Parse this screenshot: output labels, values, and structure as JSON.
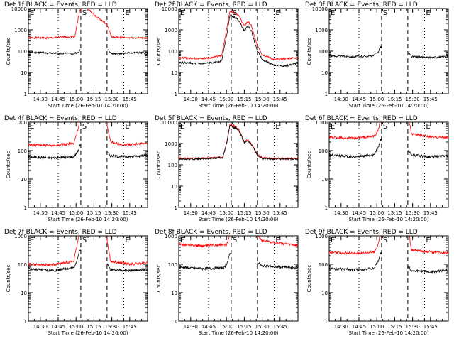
{
  "page": {
    "colors": {
      "background": "#ffffff",
      "axis": "#000000",
      "events": "#000000",
      "lld": "#ff0000"
    }
  },
  "chart_data": [
    {
      "type": "line",
      "title": "Det 1f BLACK = Events, RED = LLD",
      "xlabel": "Start Time (26-Feb-10 14:20:00)",
      "ylabel": "Counts/sec",
      "xlim": [
        "14:20",
        "16:00"
      ],
      "ylim": [
        1,
        10000
      ],
      "yscale": "log",
      "xticks": [
        "14:30",
        "14:45",
        "15:00",
        "15:15",
        "15:30",
        "15:45"
      ],
      "yticks": [
        "1",
        "10",
        "100",
        "1000",
        "10000"
      ],
      "markers": [
        {
          "label": "E",
          "time": "14:20",
          "style": "dotted"
        },
        {
          "label": "",
          "time": "14:45",
          "style": "dotted"
        },
        {
          "label": "S",
          "time": "15:04",
          "style": "dashed"
        },
        {
          "label": "",
          "time": "15:26",
          "style": "dashed"
        },
        {
          "label": "E",
          "time": "15:40",
          "style": "dotted"
        }
      ],
      "series": [
        {
          "name": "LLD",
          "color": "#ff0000",
          "x": [
            "14:20",
            "14:40",
            "14:59",
            "15:03",
            "15:08",
            "15:15",
            "15:26",
            "15:30",
            "15:50",
            "16:00"
          ],
          "y": [
            420,
            420,
            500,
            8000,
            13000,
            5000,
            1800,
            450,
            420,
            420
          ]
        },
        {
          "name": "Events",
          "color": "#000000",
          "gap": [
            "15:04",
            "15:26"
          ],
          "x": [
            "14:20",
            "14:40",
            "14:58",
            "15:02",
            "15:03",
            "15:27",
            "15:30",
            "15:50",
            "16:00"
          ],
          "y": [
            90,
            80,
            75,
            90,
            110,
            110,
            75,
            85,
            80
          ]
        }
      ]
    },
    {
      "type": "line",
      "title": "Det 2f BLACK = Events, RED = LLD",
      "xlabel": "Start Time (26-Feb-10 14:20:00)",
      "ylabel": "Counts/sec",
      "xlim": [
        "14:20",
        "16:00"
      ],
      "ylim": [
        1,
        10000
      ],
      "yscale": "log",
      "xticks": [
        "14:30",
        "14:45",
        "15:00",
        "15:15",
        "15:30",
        "15:45"
      ],
      "yticks": [
        "1",
        "10",
        "100",
        "1000",
        "10000"
      ],
      "markers": [
        {
          "label": "E",
          "time": "14:20",
          "style": "dotted"
        },
        {
          "label": "",
          "time": "14:45",
          "style": "dotted"
        },
        {
          "label": "S",
          "time": "15:04",
          "style": "dashed"
        },
        {
          "label": "",
          "time": "15:26",
          "style": "dashed"
        },
        {
          "label": "E",
          "time": "15:40",
          "style": "dotted"
        }
      ],
      "series": [
        {
          "name": "LLD",
          "color": "#ff0000",
          "x": [
            "14:20",
            "14:40",
            "14:56",
            "15:00",
            "15:03",
            "15:10",
            "15:15",
            "15:18",
            "15:21",
            "15:25",
            "15:30",
            "15:40",
            "15:50",
            "16:00"
          ],
          "y": [
            50,
            45,
            60,
            1000,
            8000,
            5000,
            1500,
            2500,
            1500,
            250,
            70,
            40,
            45,
            50
          ]
        },
        {
          "name": "Events",
          "color": "#000000",
          "x": [
            "14:20",
            "14:40",
            "14:56",
            "15:00",
            "15:03",
            "15:10",
            "15:15",
            "15:18",
            "15:21",
            "15:25",
            "15:30",
            "15:40",
            "15:50",
            "16:00"
          ],
          "y": [
            30,
            25,
            35,
            500,
            5000,
            3000,
            900,
            1500,
            900,
            150,
            40,
            22,
            20,
            28
          ]
        }
      ]
    },
    {
      "type": "line",
      "title": "Det 3f BLACK = Events, RED = LLD",
      "xlabel": "Start Time (26-Feb-10 14:20:00)",
      "ylabel": "Counts/sec",
      "xlim": [
        "14:20",
        "16:00"
      ],
      "ylim": [
        1,
        10000
      ],
      "yscale": "log",
      "xticks": [
        "14:30",
        "14:45",
        "15:00",
        "15:15",
        "15:30",
        "15:45"
      ],
      "yticks": [
        "1",
        "10",
        "100",
        "1000",
        "10000"
      ],
      "markers": [
        {
          "label": "E",
          "time": "14:20",
          "style": "dotted"
        },
        {
          "label": "",
          "time": "14:45",
          "style": "dotted"
        },
        {
          "label": "S",
          "time": "15:04",
          "style": "dashed"
        },
        {
          "label": "",
          "time": "15:26",
          "style": "dashed"
        },
        {
          "label": "E",
          "time": "15:40",
          "style": "dotted"
        }
      ],
      "series": [
        {
          "name": "Events",
          "color": "#000000",
          "gap": [
            "15:04",
            "15:26"
          ],
          "x": [
            "14:20",
            "14:40",
            "14:57",
            "15:01",
            "15:03",
            "15:27",
            "15:29",
            "15:45",
            "16:00"
          ],
          "y": [
            60,
            55,
            60,
            90,
            160,
            80,
            55,
            50,
            55
          ]
        }
      ]
    },
    {
      "type": "line",
      "title": "Det 4f BLACK = Events, RED = LLD",
      "xlabel": "Start Time (26-Feb-10 14:20:00)",
      "ylabel": "Counts/sec",
      "xlim": [
        "14:20",
        "16:00"
      ],
      "ylim": [
        1,
        1000
      ],
      "yscale": "log",
      "xticks": [
        "14:30",
        "14:45",
        "15:00",
        "15:15",
        "15:30",
        "15:45"
      ],
      "yticks": [
        "1",
        "10",
        "100",
        "1000"
      ],
      "markers": [
        {
          "label": "E",
          "time": "14:20",
          "style": "dotted"
        },
        {
          "label": "",
          "time": "14:45",
          "style": "dotted"
        },
        {
          "label": "S",
          "time": "15:04",
          "style": "dashed"
        },
        {
          "label": "",
          "time": "15:26",
          "style": "dashed"
        },
        {
          "label": "E",
          "time": "15:40",
          "style": "dotted"
        }
      ],
      "series": [
        {
          "name": "LLD",
          "color": "#ff0000",
          "x": [
            "14:20",
            "14:40",
            "14:58",
            "15:02",
            "15:03",
            "15:25",
            "15:27",
            "15:29",
            "15:40",
            "16:00"
          ],
          "y": [
            160,
            150,
            180,
            600,
            1500,
            1500,
            500,
            200,
            160,
            180
          ]
        },
        {
          "name": "Events",
          "color": "#000000",
          "gap": [
            "15:04",
            "15:26"
          ],
          "x": [
            "14:20",
            "14:40",
            "14:58",
            "15:02",
            "15:03",
            "15:27",
            "15:29",
            "15:45",
            "16:00"
          ],
          "y": [
            60,
            55,
            60,
            100,
            160,
            80,
            65,
            60,
            70
          ]
        }
      ]
    },
    {
      "type": "line",
      "title": "Det 5f BLACK = Events, RED = LLD",
      "xlabel": "Start Time (26-Feb-10 14:20:00)",
      "ylabel": "Counts/sec",
      "xlim": [
        "14:20",
        "16:00"
      ],
      "ylim": [
        1,
        10000
      ],
      "yscale": "log",
      "xticks": [
        "14:30",
        "14:45",
        "15:00",
        "15:15",
        "15:30",
        "15:45"
      ],
      "yticks": [
        "1",
        "10",
        "100",
        "1000",
        "10000"
      ],
      "markers": [
        {
          "label": "E",
          "time": "14:20",
          "style": "dotted"
        },
        {
          "label": "",
          "time": "14:45",
          "style": "dotted"
        },
        {
          "label": "S",
          "time": "15:04",
          "style": "dashed"
        },
        {
          "label": "",
          "time": "15:26",
          "style": "dashed"
        },
        {
          "label": "E",
          "time": "15:40",
          "style": "dotted"
        }
      ],
      "series": [
        {
          "name": "LLD",
          "color": "#ff0000",
          "x": [
            "14:20",
            "14:40",
            "14:57",
            "15:00",
            "15:03",
            "15:10",
            "15:15",
            "15:18",
            "15:22",
            "15:26",
            "15:30",
            "15:40",
            "16:00"
          ],
          "y": [
            200,
            200,
            230,
            1000,
            8000,
            5000,
            1200,
            1500,
            800,
            300,
            210,
            200,
            200
          ]
        },
        {
          "name": "Events",
          "color": "#000000",
          "x": [
            "14:20",
            "14:40",
            "14:57",
            "15:00",
            "15:03",
            "15:10",
            "15:15",
            "15:18",
            "15:22",
            "15:26",
            "15:30",
            "15:40",
            "16:00"
          ],
          "y": [
            190,
            190,
            220,
            900,
            7000,
            4500,
            1100,
            1400,
            750,
            280,
            200,
            190,
            190
          ]
        }
      ]
    },
    {
      "type": "line",
      "title": "Det 6f BLACK = Events, RED = LLD",
      "xlabel": "Start Time (26-Feb-10 14:20:00)",
      "ylabel": "Counts/sec",
      "xlim": [
        "14:20",
        "16:00"
      ],
      "ylim": [
        1,
        1000
      ],
      "yscale": "log",
      "xticks": [
        "14:30",
        "14:45",
        "15:00",
        "15:15",
        "15:30",
        "15:45"
      ],
      "yticks": [
        "1",
        "10",
        "100",
        "1000"
      ],
      "markers": [
        {
          "label": "E",
          "time": "14:20",
          "style": "dotted"
        },
        {
          "label": "",
          "time": "14:45",
          "style": "dotted"
        },
        {
          "label": "S",
          "time": "15:04",
          "style": "dashed"
        },
        {
          "label": "",
          "time": "15:26",
          "style": "dashed"
        },
        {
          "label": "E",
          "time": "15:40",
          "style": "dotted"
        }
      ],
      "series": [
        {
          "name": "LLD",
          "color": "#ff0000",
          "gap": [
            "15:04",
            "15:26"
          ],
          "x": [
            "14:20",
            "14:40",
            "14:58",
            "15:01",
            "15:03",
            "15:27",
            "15:29",
            "15:45",
            "16:00"
          ],
          "y": [
            300,
            270,
            320,
            500,
            1200,
            1200,
            380,
            300,
            290
          ]
        },
        {
          "name": "Events",
          "color": "#000000",
          "gap": [
            "15:04",
            "15:26"
          ],
          "x": [
            "14:20",
            "14:40",
            "14:57",
            "15:01",
            "15:03",
            "15:27",
            "15:29",
            "15:45",
            "16:00"
          ],
          "y": [
            70,
            60,
            70,
            120,
            250,
            90,
            70,
            60,
            65
          ]
        }
      ]
    },
    {
      "type": "line",
      "title": "Det 7f BLACK = Events, RED = LLD",
      "xlabel": "Start Time (26-Feb-10 14:20:00)",
      "ylabel": "Counts/sec",
      "xlim": [
        "14:20",
        "16:00"
      ],
      "ylim": [
        1,
        1000
      ],
      "yscale": "log",
      "xticks": [
        "14:30",
        "14:45",
        "15:00",
        "15:15",
        "15:30",
        "15:45"
      ],
      "yticks": [
        "1",
        "10",
        "100",
        "1000"
      ],
      "markers": [
        {
          "label": "E",
          "time": "14:20",
          "style": "dotted"
        },
        {
          "label": "",
          "time": "14:45",
          "style": "dotted"
        },
        {
          "label": "S",
          "time": "15:04",
          "style": "dashed"
        },
        {
          "label": "",
          "time": "15:26",
          "style": "dashed"
        },
        {
          "label": "E",
          "time": "15:40",
          "style": "dotted"
        }
      ],
      "series": [
        {
          "name": "LLD",
          "color": "#ff0000",
          "x": [
            "14:20",
            "14:40",
            "14:58",
            "15:01",
            "15:03",
            "15:25",
            "15:27",
            "15:29",
            "15:45",
            "16:00"
          ],
          "y": [
            100,
            95,
            130,
            500,
            1500,
            1500,
            400,
            130,
            100,
            110
          ]
        },
        {
          "name": "Events",
          "color": "#000000",
          "gap": [
            "15:04",
            "15:26"
          ],
          "x": [
            "14:20",
            "14:40",
            "14:58",
            "15:01",
            "15:03",
            "15:27",
            "15:29",
            "15:45",
            "16:00"
          ],
          "y": [
            70,
            60,
            75,
            150,
            300,
            90,
            65,
            60,
            65
          ]
        }
      ]
    },
    {
      "type": "line",
      "title": "Det 8f BLACK = Events, RED = LLD",
      "xlabel": "Start Time (26-Feb-10 14:20:00)",
      "ylabel": "Counts/sec",
      "xlim": [
        "14:20",
        "16:00"
      ],
      "ylim": [
        1,
        1000
      ],
      "yscale": "log",
      "xticks": [
        "14:30",
        "14:45",
        "15:00",
        "15:15",
        "15:30",
        "15:45"
      ],
      "yticks": [
        "1",
        "10",
        "100",
        "1000"
      ],
      "markers": [
        {
          "label": "E",
          "time": "14:20",
          "style": "dotted"
        },
        {
          "label": "",
          "time": "14:45",
          "style": "dotted"
        },
        {
          "label": "S",
          "time": "15:04",
          "style": "dashed"
        },
        {
          "label": "",
          "time": "15:26",
          "style": "dashed"
        },
        {
          "label": "E",
          "time": "15:40",
          "style": "dotted"
        }
      ],
      "series": [
        {
          "name": "LLD",
          "color": "#ff0000",
          "gap": [
            "15:04",
            "15:26"
          ],
          "x": [
            "14:20",
            "14:40",
            "15:00",
            "15:02",
            "15:03",
            "15:27",
            "15:29",
            "15:45",
            "16:00"
          ],
          "y": [
            500,
            450,
            500,
            800,
            1500,
            1000,
            700,
            550,
            450
          ]
        },
        {
          "name": "Events",
          "color": "#000000",
          "gap": [
            "15:04",
            "15:26"
          ],
          "x": [
            "14:20",
            "14:40",
            "14:58",
            "15:01",
            "15:03",
            "15:27",
            "15:29",
            "15:45",
            "16:00"
          ],
          "y": [
            80,
            70,
            75,
            120,
            250,
            110,
            90,
            80,
            75
          ]
        }
      ]
    },
    {
      "type": "line",
      "title": "Det 9f BLACK = Events, RED = LLD",
      "xlabel": "Start Time (26-Feb-10 14:20:00)",
      "ylabel": "Counts/sec",
      "xlim": [
        "14:20",
        "16:00"
      ],
      "ylim": [
        1,
        1000
      ],
      "yscale": "log",
      "xticks": [
        "14:30",
        "14:45",
        "15:00",
        "15:15",
        "15:30",
        "15:45"
      ],
      "yticks": [
        "1",
        "10",
        "100",
        "1000"
      ],
      "markers": [
        {
          "label": "E",
          "time": "14:20",
          "style": "dotted"
        },
        {
          "label": "",
          "time": "14:45",
          "style": "dotted"
        },
        {
          "label": "S",
          "time": "15:04",
          "style": "dashed"
        },
        {
          "label": "",
          "time": "15:26",
          "style": "dashed"
        },
        {
          "label": "E",
          "time": "15:40",
          "style": "dotted"
        }
      ],
      "series": [
        {
          "name": "LLD",
          "color": "#ff0000",
          "gap": [
            "15:04",
            "15:26"
          ],
          "x": [
            "14:20",
            "14:40",
            "14:58",
            "15:01",
            "15:03",
            "15:27",
            "15:29",
            "15:45",
            "16:00"
          ],
          "y": [
            260,
            240,
            270,
            500,
            1200,
            1200,
            320,
            270,
            260
          ]
        },
        {
          "name": "Events",
          "color": "#000000",
          "gap": [
            "15:04",
            "15:26"
          ],
          "x": [
            "14:20",
            "14:40",
            "14:57",
            "15:01",
            "15:03",
            "15:27",
            "15:29",
            "15:45",
            "16:00"
          ],
          "y": [
            70,
            65,
            70,
            120,
            250,
            80,
            60,
            55,
            60
          ]
        }
      ]
    }
  ]
}
